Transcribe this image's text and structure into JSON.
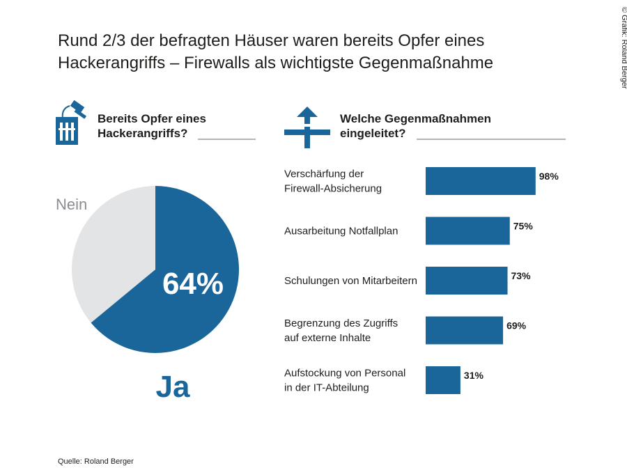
{
  "title": "Rund 2/3 der befragten Häuser waren bereits Opfer eines\nHackerangriffs – Firewalls als wichtigste Gegenmaßnahme",
  "credit": "© Grafik: Roland Berger",
  "source": "Quelle: Roland Berger",
  "chart_data": [
    {
      "type": "pie",
      "title": "Bereits Opfer eines\nHackerangriffs?",
      "categories": [
        "Ja",
        "Nein"
      ],
      "values": [
        64,
        36
      ],
      "value_labels": [
        "64%",
        null
      ],
      "colors": [
        "#1a6599",
        "#e3e4e6"
      ],
      "label_colors": [
        "#1a6599",
        "#8a8c8f"
      ]
    },
    {
      "type": "bar",
      "orientation": "horizontal",
      "title": "Welche Gegenmaßnahmen\neingeleitet?",
      "categories": [
        "Verschärfung der\nFirewall-Absicherung",
        "Ausarbeitung Notfallplan",
        "Schulungen von Mitarbeitern",
        "Begrenzung des Zugriffs\nauf externe Inhalte",
        "Aufstockung von Personal\nin der IT-Abteilung"
      ],
      "values": [
        98,
        75,
        73,
        69,
        31
      ],
      "value_labels": [
        "98%",
        "75%",
        "73%",
        "69%",
        "31%"
      ],
      "color": "#1a6599"
    }
  ]
}
